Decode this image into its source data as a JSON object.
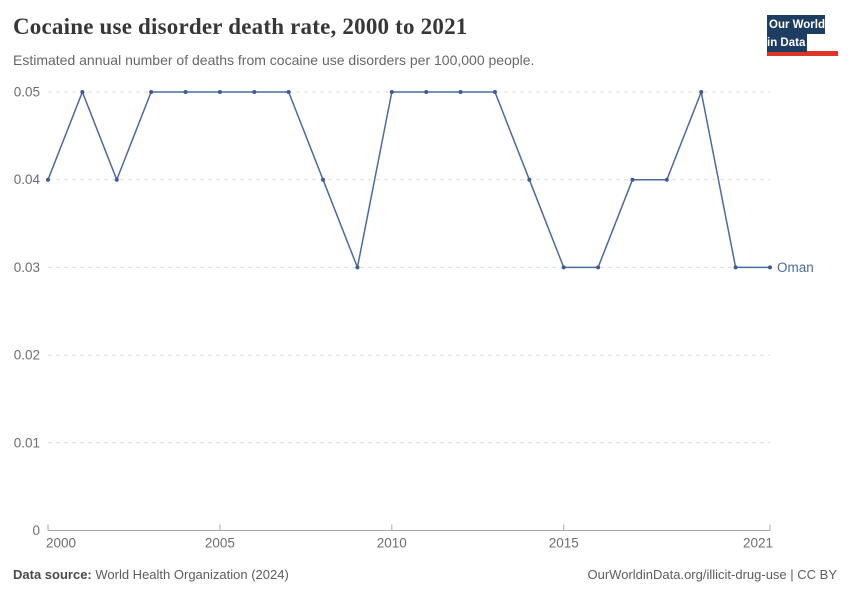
{
  "header": {
    "title": "Cocaine use disorder death rate, 2000 to 2021",
    "subtitle": "Estimated annual number of deaths from cocaine use disorders per 100,000 people.",
    "logo": {
      "line1": "Our World",
      "line2": "in Data"
    }
  },
  "chart_data": {
    "type": "line",
    "title": "Cocaine use disorder death rate, 2000 to 2021",
    "x": [
      2000,
      2001,
      2002,
      2003,
      2004,
      2005,
      2006,
      2007,
      2008,
      2009,
      2010,
      2011,
      2012,
      2013,
      2014,
      2015,
      2016,
      2017,
      2018,
      2019,
      2020,
      2021
    ],
    "series": [
      {
        "name": "Oman",
        "color": "#4c6aa0",
        "values": [
          0.04,
          0.05,
          0.04,
          0.05,
          0.05,
          0.05,
          0.05,
          0.05,
          0.04,
          0.03,
          0.05,
          0.05,
          0.05,
          0.05,
          0.04,
          0.03,
          0.03,
          0.04,
          0.04,
          0.05,
          0.03,
          0.03
        ]
      }
    ],
    "xlabel": "",
    "ylabel": "",
    "ylim": [
      0,
      0.05
    ],
    "yticks": [
      0,
      0.01,
      0.02,
      0.03,
      0.04,
      0.05
    ],
    "xticks": [
      2000,
      2005,
      2010,
      2015,
      2021
    ],
    "grid": "horizontal-dashed",
    "legend_position": "end-of-line"
  },
  "footer": {
    "source_label": "Data source:",
    "source_text": " World Health Organization (2024)",
    "credit": "OurWorldinData.org/illicit-drug-use | CC BY"
  },
  "colors": {
    "line": "#4c6aa0",
    "marker": "#3d5c96",
    "grid": "#dcdcdc",
    "axis": "#a9a9a9",
    "tick_label": "#6e6e6e",
    "title": "#373737",
    "subtitle": "#676767",
    "footer": "#5d5d5d",
    "logo_bg": "#1d3d63",
    "logo_red": "#dd3526"
  }
}
